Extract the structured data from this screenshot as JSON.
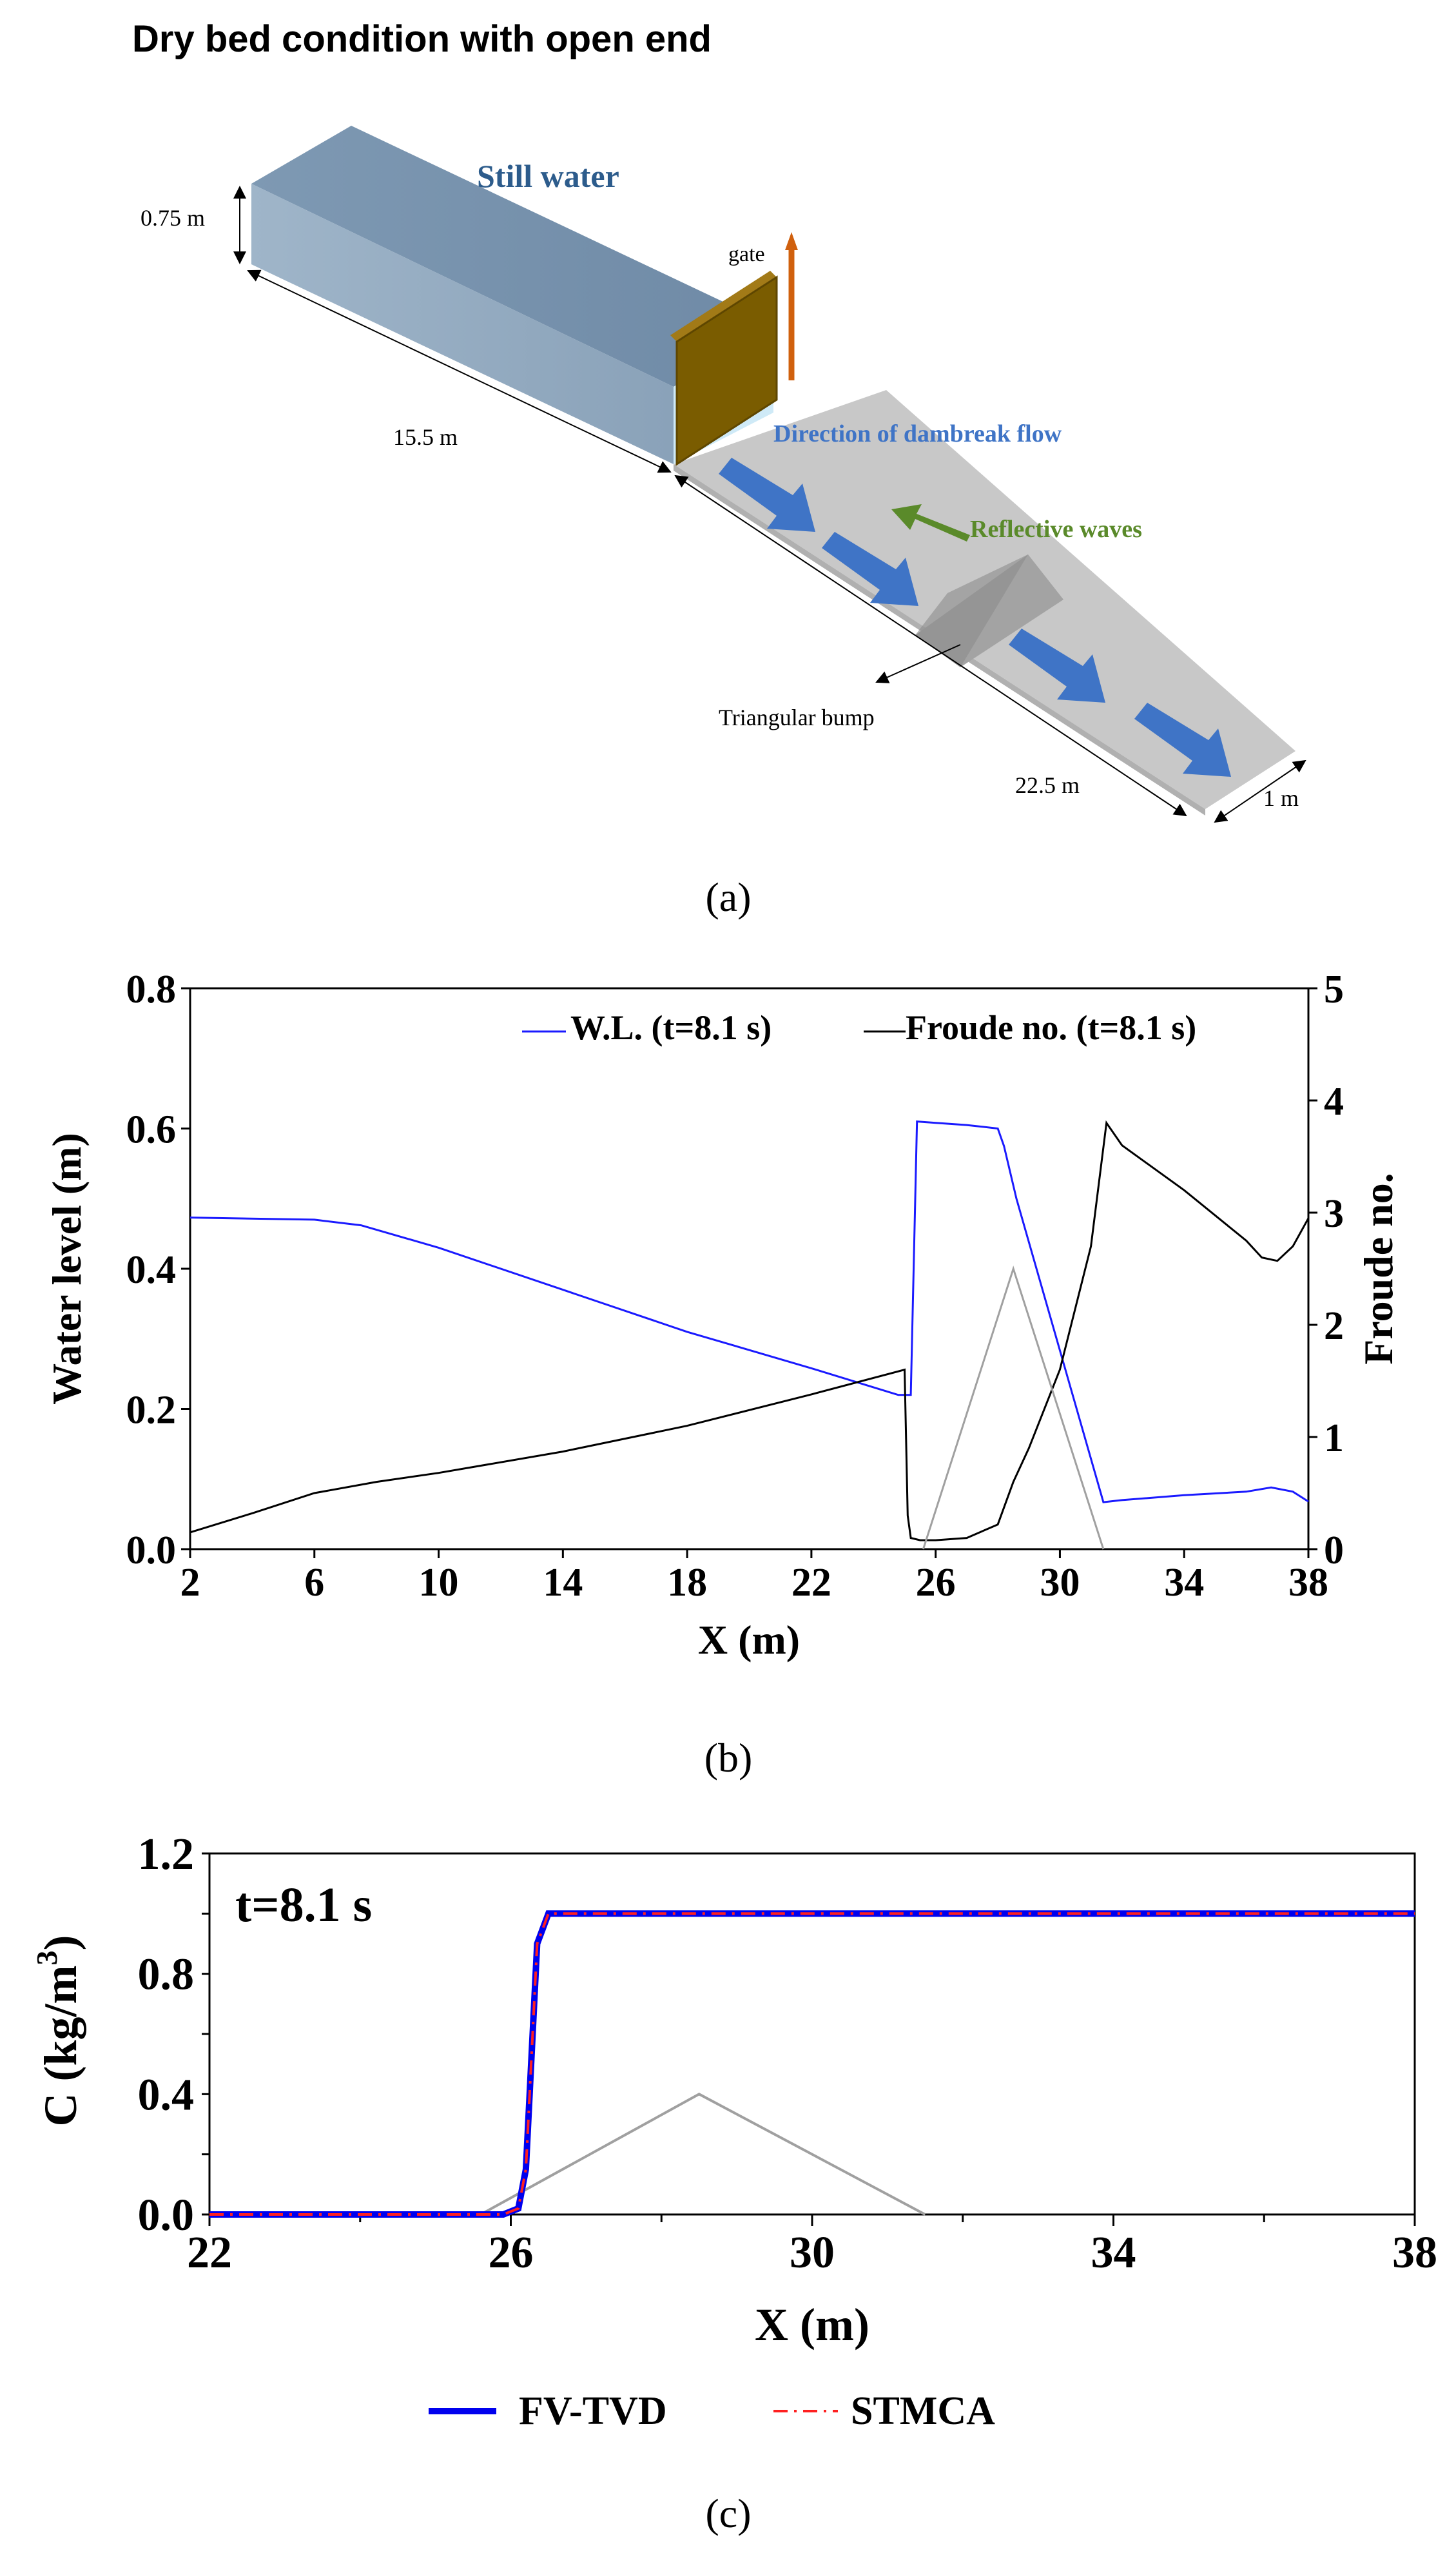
{
  "panel_a": {
    "title": "Dry bed condition with open end",
    "still_water": "Still water",
    "gate": "gate",
    "height": "0.75 m",
    "upstream_length": "15.5 m",
    "downstream_length": "22.5 m",
    "width": "1 m",
    "flow_direction": "Direction of dambreak flow",
    "reflective": "Reflective waves",
    "bump": "Triangular bump",
    "caption": "(a)"
  },
  "panel_b": {
    "caption": "(b)",
    "chart_data": {
      "type": "line",
      "xlabel": "X (m)",
      "ylabel": "Water level (m)",
      "y2label": "Froude no.",
      "xlim": [
        2,
        38
      ],
      "ylim": [
        0,
        0.8
      ],
      "y2lim": [
        0,
        5
      ],
      "xticks": [
        "2",
        "6",
        "10",
        "14",
        "18",
        "22",
        "26",
        "30",
        "34",
        "38"
      ],
      "yticks": [
        "0.0",
        "0.2",
        "0.4",
        "0.6",
        "0.8"
      ],
      "y2ticks": [
        "0",
        "1",
        "2",
        "3",
        "4",
        "5"
      ],
      "legend_position": "top-right",
      "series": [
        {
          "name": "W.L. (t=8.1 s)",
          "color": "#1a1aff",
          "axis": "left",
          "x": [
            2,
            6,
            7.5,
            10,
            14,
            18,
            22,
            24.8,
            25.2,
            25.4,
            26,
            27,
            28,
            28.2,
            28.6,
            31.4,
            32,
            34,
            36,
            36.8,
            37.5,
            38
          ],
          "y": [
            0.473,
            0.47,
            0.462,
            0.43,
            0.37,
            0.31,
            0.258,
            0.22,
            0.22,
            0.61,
            0.608,
            0.605,
            0.6,
            0.575,
            0.5,
            0.067,
            0.07,
            0.077,
            0.082,
            0.088,
            0.082,
            0.068
          ]
        },
        {
          "name": "Froude no. (t=8.1 s)",
          "color": "#000000",
          "axis": "right",
          "x": [
            2,
            4,
            6,
            8,
            10,
            14,
            18,
            22,
            25,
            25.1,
            25.2,
            25.5,
            26,
            27,
            28,
            28.5,
            29,
            30,
            31,
            31.5,
            32,
            34,
            36,
            36.5,
            37,
            37.5,
            38
          ],
          "y": [
            0.15,
            0.32,
            0.5,
            0.6,
            0.68,
            0.87,
            1.1,
            1.38,
            1.6,
            0.3,
            0.1,
            0.08,
            0.08,
            0.1,
            0.22,
            0.6,
            0.9,
            1.6,
            2.7,
            3.8,
            3.6,
            3.2,
            2.75,
            2.6,
            2.57,
            2.7,
            2.95
          ]
        },
        {
          "name": "",
          "color": "#a0a0a0",
          "axis": "left",
          "x": [
            25.6,
            28.5,
            31.4
          ],
          "y": [
            0,
            0.4,
            0
          ]
        }
      ]
    }
  },
  "panel_c": {
    "caption": "(c)",
    "annotation": "t=8.1 s",
    "chart_data": {
      "type": "line",
      "xlabel": "X (m)",
      "ylabel": "C  (kg/m",
      "ylabel_sup": "3",
      "ylabel_close": ")",
      "xlim": [
        22,
        38
      ],
      "ylim": [
        0,
        1.2
      ],
      "xticks": [
        "22",
        "26",
        "30",
        "34",
        "38"
      ],
      "yticks": [
        "0.0",
        "0.4",
        "0.8",
        "1.2"
      ],
      "legend_position": "bottom-outside",
      "series": [
        {
          "name": "FV-TVD",
          "color": "#0000ee",
          "style": "solid",
          "x": [
            22,
            25.9,
            26.1,
            26.2,
            26.35,
            26.5,
            27,
            38
          ],
          "y": [
            0,
            0,
            0.02,
            0.15,
            0.9,
            1.0,
            1.0,
            1.0
          ]
        },
        {
          "name": "STMCA",
          "color": "#ff2020",
          "style": "dashdot",
          "x": [
            22,
            25.9,
            26.1,
            26.2,
            26.35,
            26.5,
            27,
            38
          ],
          "y": [
            0,
            0,
            0.02,
            0.15,
            0.9,
            1.0,
            1.0,
            1.0
          ]
        },
        {
          "name": "",
          "color": "#a0a0a0",
          "style": "solid",
          "x": [
            25.6,
            28.5,
            31.5
          ],
          "y": [
            0,
            0.4,
            0
          ]
        }
      ]
    }
  }
}
